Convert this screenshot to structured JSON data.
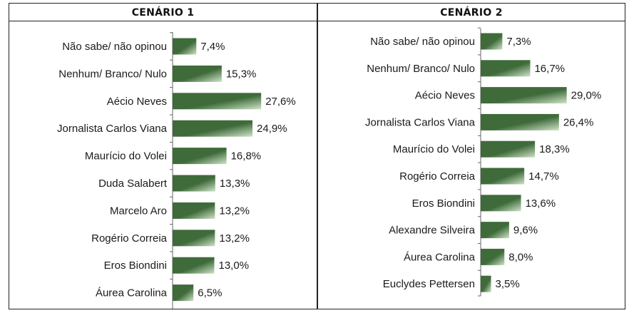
{
  "chart_data": [
    {
      "type": "bar",
      "orientation": "horizontal",
      "title": "CENÁRIO 1",
      "categories": [
        "Não sabe/ não opinou",
        "Nenhum/ Branco/ Nulo",
        "Aécio Neves",
        "Jornalista Carlos Viana",
        "Maurício do Volei",
        "Duda Salabert",
        "Marcelo Aro",
        "Rogério Correia",
        "Eros Biondini",
        "Áurea Carolina"
      ],
      "values": [
        7.4,
        15.3,
        27.6,
        24.9,
        16.8,
        13.3,
        13.2,
        13.2,
        13.0,
        6.5
      ],
      "value_labels": [
        "7,4%",
        "15,3%",
        "27,6%",
        "24,9%",
        "16,8%",
        "13,3%",
        "13,2%",
        "13,2%",
        "13,0%",
        "6,5%"
      ],
      "bar_color": "#3f6b3a",
      "bar_highlight": "#cfe3c9",
      "grid": false
    },
    {
      "type": "bar",
      "orientation": "horizontal",
      "title": "CENÁRIO 2",
      "categories": [
        "Não sabe/ não opinou",
        "Nenhum/ Branco/ Nulo",
        "Aécio Neves",
        "Jornalista Carlos Viana",
        "Maurício do Volei",
        "Rogério Correia",
        "Eros Biondini",
        "Alexandre Silveira",
        "Áurea Carolina",
        "Euclydes Pettersen"
      ],
      "values": [
        7.3,
        16.7,
        29.0,
        26.4,
        18.3,
        14.7,
        13.6,
        9.6,
        8.0,
        3.5
      ],
      "value_labels": [
        "7,3%",
        "16,7%",
        "29,0%",
        "26,4%",
        "18,3%",
        "14,7%",
        "13,6%",
        "9,6%",
        "8,0%",
        "3,5%"
      ],
      "bar_color": "#3f6b3a",
      "bar_highlight": "#cfe3c9",
      "grid": false
    }
  ]
}
